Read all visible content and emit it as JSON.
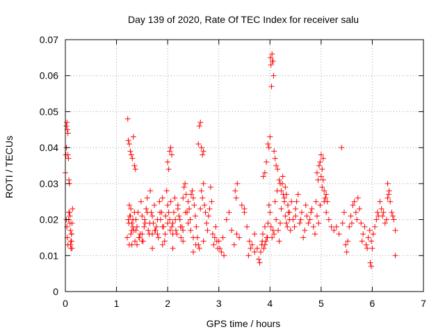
{
  "chart_data": {
    "type": "scatter",
    "title": "Day 139 of 2020, Rate Of TEC Index for receiver salu",
    "xlabel": "GPS time / hours",
    "ylabel": "ROTI / TECUs",
    "xlim": [
      0,
      7
    ],
    "ylim": [
      0,
      0.07
    ],
    "x_ticks": [
      0,
      1,
      2,
      3,
      4,
      5,
      6,
      7
    ],
    "y_ticks": [
      0,
      0.01,
      0.02,
      0.03,
      0.04,
      0.05,
      0.06,
      0.07
    ],
    "x_tick_labels": [
      "0",
      "1",
      "2",
      "3",
      "4",
      "5",
      "6",
      "7"
    ],
    "y_tick_labels": [
      "0",
      "0.01",
      "0.02",
      "0.03",
      "0.04",
      "0.05",
      "0.06",
      "0.07"
    ],
    "grid": true,
    "marker": "+",
    "marker_color": "#ff0000",
    "series": [
      {
        "name": "ROTI",
        "x": [
          0.0,
          0.01,
          0.02,
          0.02,
          0.03,
          0.04,
          0.05,
          0.05,
          0.06,
          0.07,
          0.08,
          0.08,
          0.09,
          0.1,
          0.1,
          0.11,
          0.12,
          0.12,
          0.13,
          0.14,
          0.02,
          0.03,
          0.04,
          0.05,
          0.06,
          0.07,
          0.09,
          0.11,
          0.12,
          0.13,
          1.22,
          1.23,
          1.25,
          1.27,
          1.29,
          1.31,
          1.33,
          1.35,
          1.37,
          1.38,
          1.4,
          1.42,
          1.44,
          1.46,
          1.48,
          1.5,
          1.52,
          1.54,
          1.56,
          1.58,
          1.6,
          1.62,
          1.64,
          1.66,
          1.68,
          1.7,
          1.72,
          1.74,
          1.76,
          1.78,
          1.8,
          1.82,
          1.84,
          1.86,
          1.88,
          1.9,
          1.92,
          1.94,
          1.96,
          1.98,
          2.0,
          2.02,
          2.04,
          2.06,
          2.08,
          2.1,
          2.12,
          2.14,
          2.16,
          2.18,
          2.2,
          2.22,
          2.24,
          2.26,
          2.28,
          2.3,
          2.32,
          2.34,
          2.36,
          2.38,
          2.4,
          2.42,
          2.44,
          2.46,
          2.48,
          2.5,
          2.52,
          2.54,
          2.56,
          2.58,
          2.6,
          2.62,
          2.64,
          2.66,
          2.68,
          2.7,
          2.72,
          2.74,
          2.76,
          2.78,
          2.8,
          2.82,
          2.84,
          2.86,
          2.88,
          2.9,
          2.92,
          2.94,
          2.96,
          2.98,
          1.25,
          1.28,
          1.3,
          1.32,
          1.34,
          1.36,
          1.4,
          1.45,
          1.5,
          1.55,
          1.6,
          1.65,
          1.7,
          1.75,
          1.8,
          1.85,
          1.9,
          1.95,
          2.0,
          2.05,
          2.1,
          2.15,
          2.2,
          2.25,
          2.3,
          2.35,
          2.4,
          2.45,
          2.5,
          2.55,
          1.24,
          1.26,
          1.28,
          1.3,
          1.32,
          1.35,
          2.0,
          2.02,
          2.04,
          2.06,
          2.08,
          2.6,
          2.62,
          2.64,
          2.66,
          2.68,
          2.7,
          1.21,
          1.23,
          1.25,
          1.27,
          1.3,
          1.38,
          1.5,
          1.7,
          1.9,
          2.1,
          2.3,
          2.5,
          2.7,
          3.0,
          3.02,
          3.05,
          3.08,
          3.1,
          3.15,
          3.2,
          3.25,
          3.3,
          3.35,
          3.4,
          3.45,
          3.5,
          3.55,
          3.6,
          3.65,
          3.7,
          3.75,
          3.8,
          3.85,
          3.9,
          3.95,
          3.32,
          3.34,
          3.36,
          3.5,
          3.58,
          3.62,
          3.7,
          3.78,
          3.82,
          3.84,
          3.86,
          3.88,
          3.9,
          3.92,
          3.94,
          3.96,
          3.98,
          4.0,
          4.02,
          4.04,
          4.06,
          4.08,
          4.1,
          4.12,
          4.14,
          4.16,
          4.18,
          4.2,
          4.22,
          4.24,
          4.26,
          4.28,
          4.3,
          4.32,
          4.34,
          4.36,
          4.38,
          4.4,
          3.87,
          3.9,
          3.93,
          3.96,
          3.98,
          4.0,
          4.01,
          4.02,
          4.03,
          4.04,
          4.05,
          4.06,
          4.07,
          4.08,
          4.1,
          4.12,
          4.15,
          4.18,
          4.2,
          4.22,
          4.25,
          4.28,
          4.3,
          4.32,
          4.35,
          4.38,
          4.42,
          4.45,
          4.48,
          4.5,
          4.5,
          4.52,
          4.55,
          4.58,
          4.6,
          4.62,
          4.65,
          4.68,
          4.7,
          4.72,
          4.75,
          4.78,
          4.8,
          4.82,
          4.85,
          4.88,
          4.9,
          4.92,
          4.95,
          4.98,
          5.0,
          5.02,
          5.04,
          5.06,
          5.08,
          5.1,
          5.12,
          5.15,
          5.2,
          5.25,
          4.92,
          4.94,
          4.96,
          4.98,
          5.0,
          5.02,
          5.04,
          5.06,
          5.08,
          5.1,
          5.3,
          5.35,
          5.4,
          5.42,
          5.45,
          5.48,
          5.5,
          5.52,
          5.55,
          5.58,
          5.6,
          5.62,
          5.65,
          5.68,
          5.7,
          5.72,
          5.75,
          5.78,
          5.8,
          5.82,
          5.85,
          5.88,
          5.9,
          5.92,
          5.95,
          5.98,
          6.0,
          6.02,
          6.05,
          6.08,
          6.1,
          6.12,
          6.15,
          6.18,
          6.2,
          6.22,
          6.25,
          6.28,
          6.3,
          6.32,
          6.35,
          6.38,
          6.4,
          6.42,
          6.45,
          5.96,
          5.98,
          6.3,
          6.33,
          6.45
        ],
        "y": [
          0.033,
          0.038,
          0.04,
          0.046,
          0.047,
          0.045,
          0.044,
          0.038,
          0.037,
          0.031,
          0.03,
          0.022,
          0.021,
          0.017,
          0.013,
          0.012,
          0.016,
          0.014,
          0.019,
          0.023,
          0.02,
          0.018,
          0.015,
          0.013,
          0.02,
          0.022,
          0.019,
          0.014,
          0.016,
          0.012,
          0.048,
          0.042,
          0.041,
          0.039,
          0.038,
          0.037,
          0.043,
          0.035,
          0.034,
          0.02,
          0.018,
          0.022,
          0.015,
          0.016,
          0.025,
          0.021,
          0.014,
          0.018,
          0.019,
          0.023,
          0.026,
          0.017,
          0.016,
          0.028,
          0.022,
          0.021,
          0.019,
          0.024,
          0.017,
          0.018,
          0.016,
          0.015,
          0.025,
          0.02,
          0.022,
          0.026,
          0.018,
          0.014,
          0.021,
          0.028,
          0.024,
          0.022,
          0.02,
          0.025,
          0.018,
          0.019,
          0.022,
          0.026,
          0.017,
          0.016,
          0.023,
          0.021,
          0.02,
          0.015,
          0.018,
          0.026,
          0.029,
          0.03,
          0.027,
          0.022,
          0.025,
          0.023,
          0.02,
          0.027,
          0.028,
          0.026,
          0.024,
          0.021,
          0.018,
          0.015,
          0.013,
          0.012,
          0.023,
          0.028,
          0.026,
          0.03,
          0.024,
          0.022,
          0.019,
          0.017,
          0.021,
          0.023,
          0.029,
          0.025,
          0.016,
          0.013,
          0.015,
          0.018,
          0.014,
          0.012,
          0.013,
          0.016,
          0.019,
          0.018,
          0.017,
          0.014,
          0.013,
          0.015,
          0.016,
          0.02,
          0.022,
          0.019,
          0.016,
          0.017,
          0.02,
          0.022,
          0.018,
          0.016,
          0.019,
          0.017,
          0.016,
          0.02,
          0.024,
          0.018,
          0.014,
          0.022,
          0.019,
          0.017,
          0.015,
          0.013,
          0.019,
          0.021,
          0.023,
          0.017,
          0.02,
          0.022,
          0.036,
          0.034,
          0.039,
          0.04,
          0.038,
          0.041,
          0.046,
          0.047,
          0.04,
          0.038,
          0.039,
          0.015,
          0.02,
          0.024,
          0.021,
          0.013,
          0.017,
          0.014,
          0.012,
          0.013,
          0.012,
          0.017,
          0.011,
          0.014,
          0.014,
          0.012,
          0.011,
          0.015,
          0.01,
          0.02,
          0.022,
          0.017,
          0.013,
          0.016,
          0.015,
          0.024,
          0.023,
          0.018,
          0.014,
          0.013,
          0.011,
          0.012,
          0.008,
          0.014,
          0.013,
          0.015,
          0.028,
          0.026,
          0.03,
          0.022,
          0.01,
          0.012,
          0.016,
          0.009,
          0.011,
          0.013,
          0.016,
          0.012,
          0.018,
          0.014,
          0.015,
          0.019,
          0.024,
          0.022,
          0.018,
          0.015,
          0.017,
          0.016,
          0.025,
          0.02,
          0.028,
          0.017,
          0.014,
          0.019,
          0.023,
          0.03,
          0.027,
          0.025,
          0.021,
          0.019,
          0.018,
          0.022,
          0.02,
          0.017,
          0.032,
          0.033,
          0.036,
          0.041,
          0.04,
          0.043,
          0.065,
          0.063,
          0.057,
          0.066,
          0.064,
          0.064,
          0.06,
          0.039,
          0.037,
          0.035,
          0.034,
          0.031,
          0.03,
          0.028,
          0.032,
          0.026,
          0.029,
          0.027,
          0.024,
          0.022,
          0.025,
          0.02,
          0.018,
          0.021,
          0.023,
          0.025,
          0.027,
          0.019,
          0.02,
          0.022,
          0.015,
          0.017,
          0.024,
          0.021,
          0.019,
          0.02,
          0.022,
          0.023,
          0.018,
          0.016,
          0.025,
          0.021,
          0.019,
          0.024,
          0.032,
          0.029,
          0.031,
          0.028,
          0.026,
          0.022,
          0.025,
          0.02,
          0.018,
          0.017,
          0.033,
          0.031,
          0.035,
          0.036,
          0.038,
          0.034,
          0.037,
          0.025,
          0.026,
          0.027,
          0.018,
          0.016,
          0.04,
          0.019,
          0.022,
          0.013,
          0.011,
          0.014,
          0.018,
          0.021,
          0.019,
          0.024,
          0.025,
          0.022,
          0.02,
          0.026,
          0.023,
          0.019,
          0.014,
          0.016,
          0.018,
          0.013,
          0.012,
          0.015,
          0.017,
          0.014,
          0.012,
          0.016,
          0.018,
          0.02,
          0.022,
          0.021,
          0.025,
          0.023,
          0.021,
          0.022,
          0.019,
          0.02,
          0.026,
          0.027,
          0.025,
          0.022,
          0.021,
          0.02,
          0.017,
          0.008,
          0.007,
          0.03,
          0.028,
          0.01
        ]
      }
    ]
  }
}
